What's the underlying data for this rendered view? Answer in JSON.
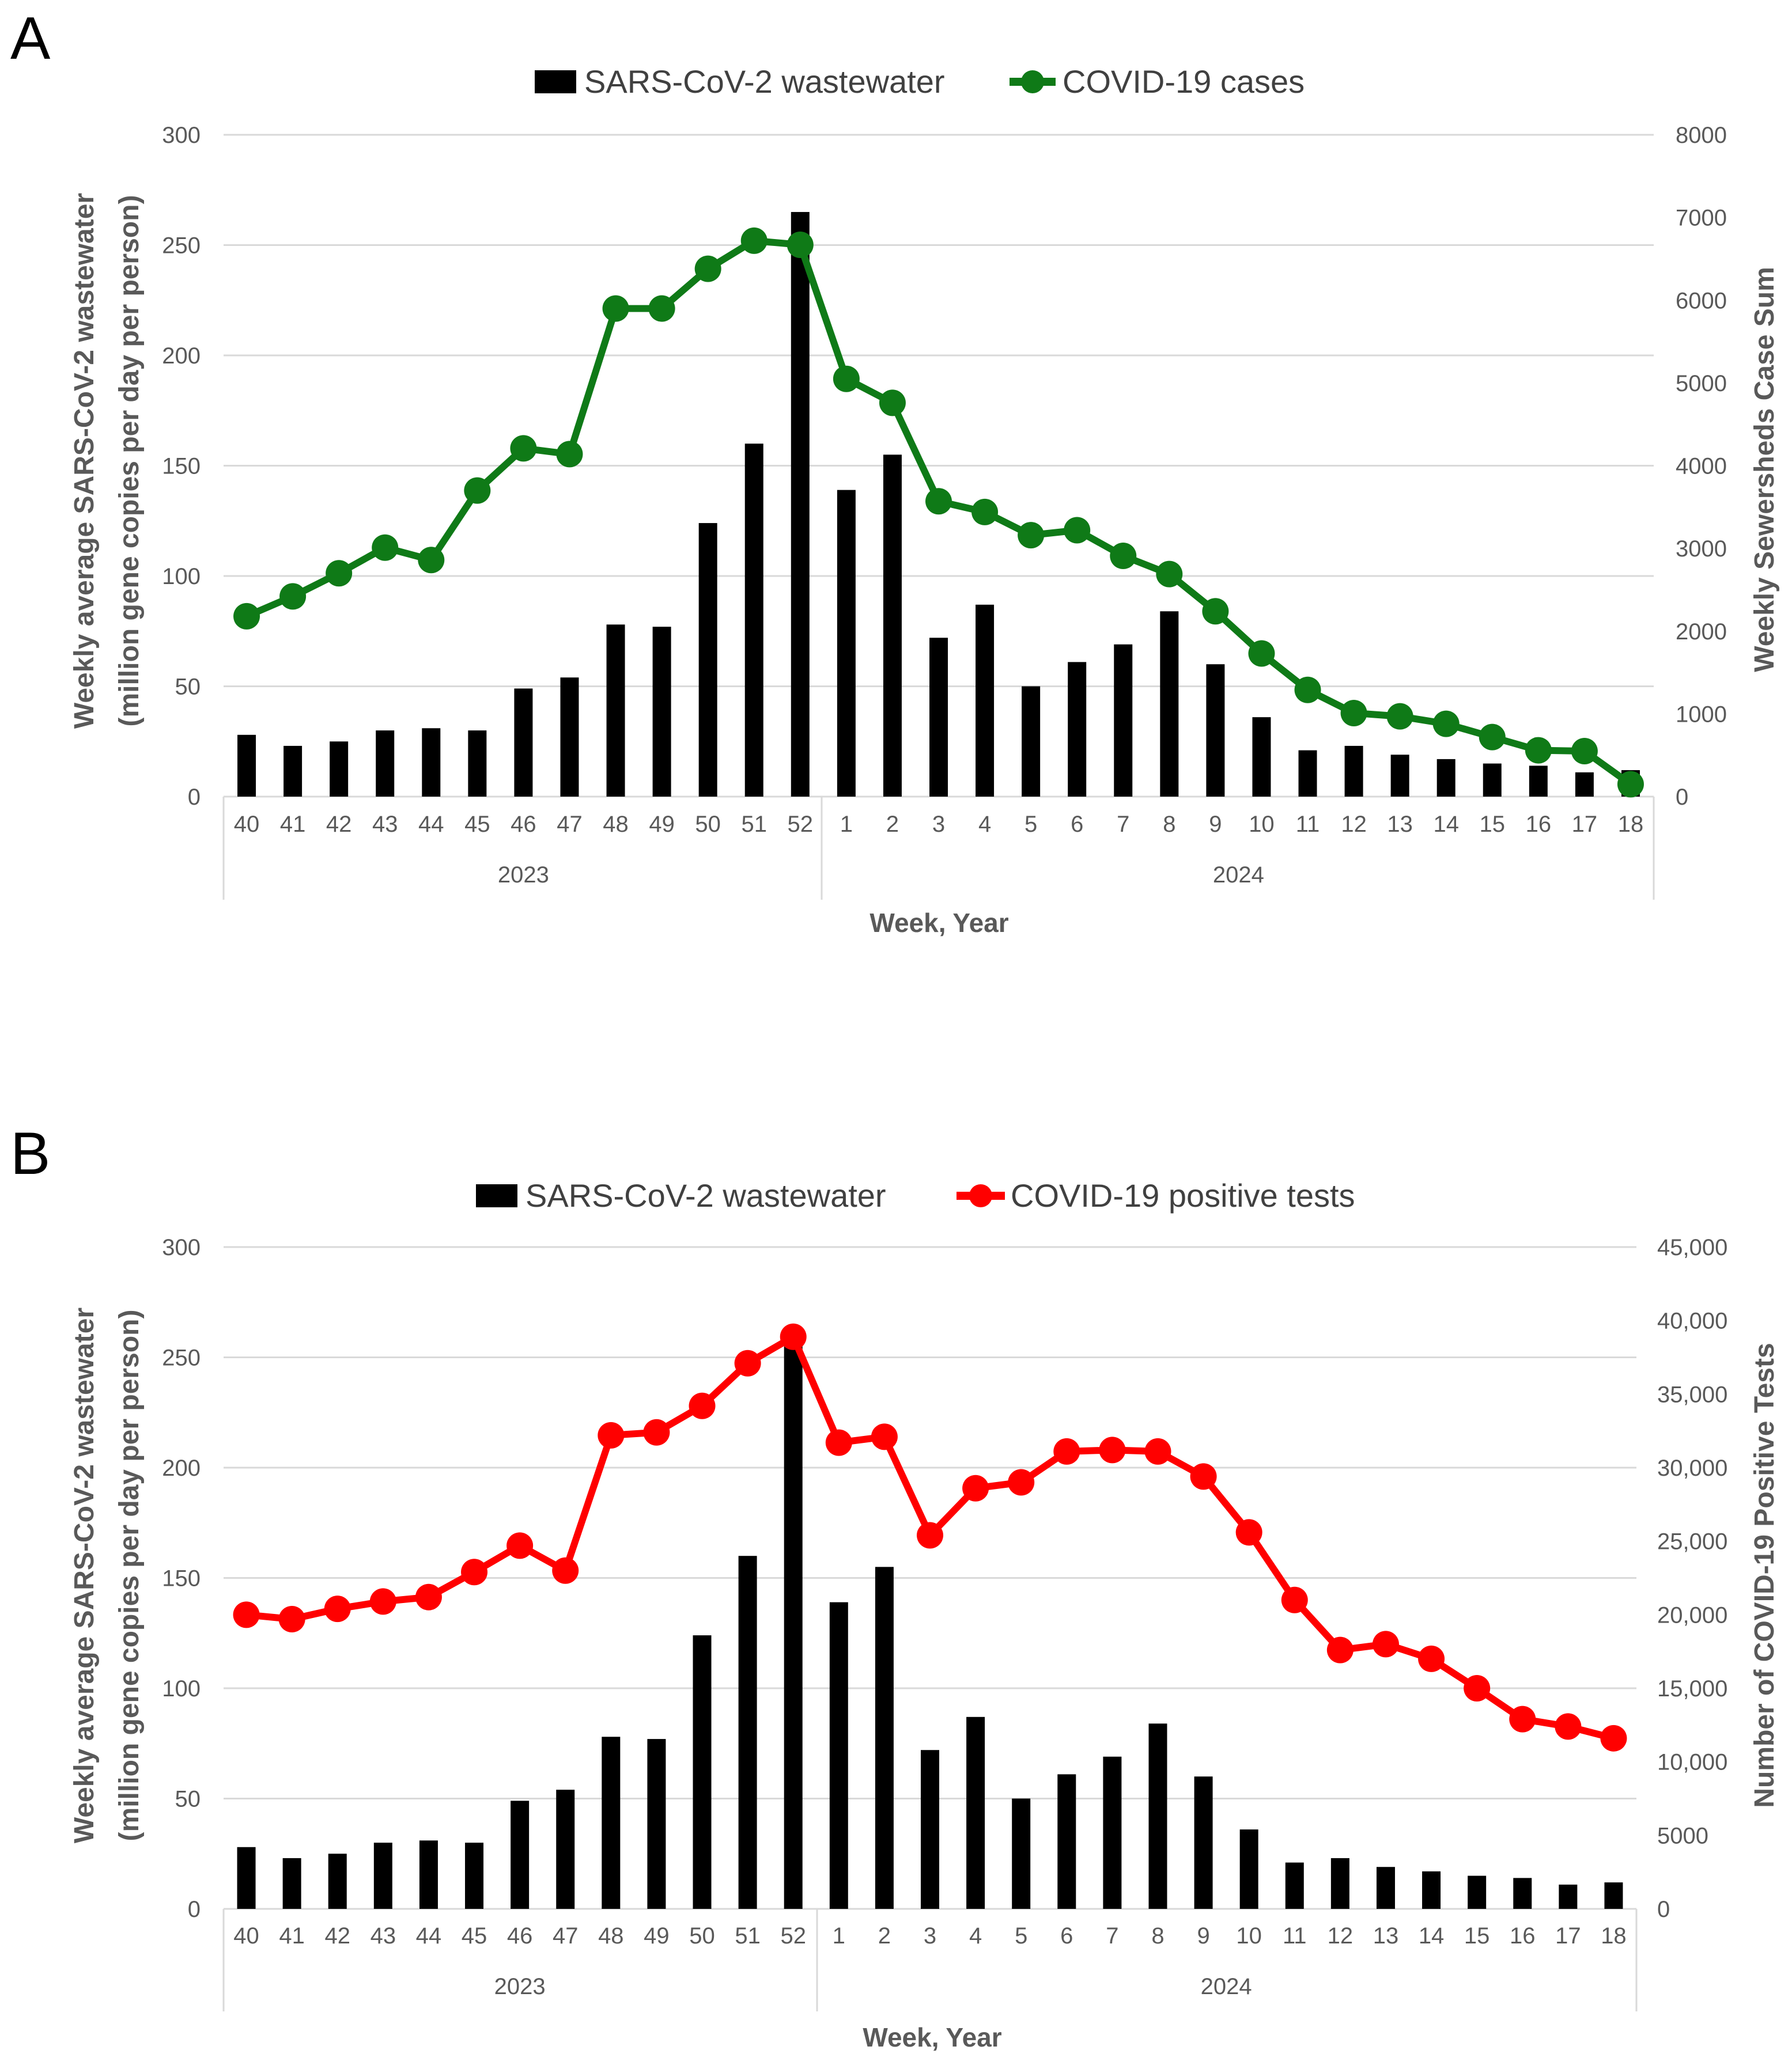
{
  "chart_data": [
    {
      "panel": "A",
      "type": "bar+line",
      "legend": {
        "position": "top",
        "items": [
          "SARS-CoV-2 wastewater",
          "COVID-19 cases"
        ]
      },
      "x": [
        "40",
        "41",
        "42",
        "43",
        "44",
        "45",
        "46",
        "47",
        "48",
        "49",
        "50",
        "51",
        "52",
        "1",
        "2",
        "3",
        "4",
        "5",
        "6",
        "7",
        "8",
        "9",
        "10",
        "11",
        "12",
        "13",
        "14",
        "15",
        "16",
        "17",
        "18"
      ],
      "year_groups": [
        {
          "label": "2023",
          "weeks": [
            "40",
            "41",
            "42",
            "43",
            "44",
            "45",
            "46",
            "47",
            "48",
            "49",
            "50",
            "51",
            "52"
          ]
        },
        {
          "label": "2024",
          "weeks": [
            "1",
            "2",
            "3",
            "4",
            "5",
            "6",
            "7",
            "8",
            "9",
            "10",
            "11",
            "12",
            "13",
            "14",
            "15",
            "16",
            "17",
            "18"
          ]
        }
      ],
      "xlabel": "Week, Year",
      "ylabel_left": [
        "Weekly average SARS-CoV-2 wastewater",
        "(million gene copies per day per person)"
      ],
      "ylabel_right": "Weekly Sewersheds Case Sum",
      "ylim_left": [
        0,
        300
      ],
      "yticks_left": [
        "0",
        "50",
        "100",
        "150",
        "200",
        "250",
        "300"
      ],
      "ylim_right": [
        0,
        8000
      ],
      "yticks_right": [
        "0",
        "1000",
        "2000",
        "3000",
        "4000",
        "5000",
        "6000",
        "7000",
        "8000"
      ],
      "grid": true,
      "series": [
        {
          "name": "SARS-CoV-2 wastewater",
          "type": "bar",
          "axis": "left",
          "color": "#000000",
          "values": [
            28,
            23,
            25,
            30,
            31,
            30,
            49,
            54,
            78,
            77,
            124,
            160,
            265,
            139,
            155,
            72,
            87,
            50,
            61,
            69,
            84,
            60,
            36,
            21,
            23,
            19,
            17,
            15,
            14,
            11,
            12
          ]
        },
        {
          "name": "COVID-19 cases",
          "type": "line",
          "axis": "right",
          "color": "#0f7a17",
          "values": [
            2180,
            2420,
            2700,
            3010,
            2860,
            3700,
            4210,
            4140,
            5900,
            5900,
            6380,
            6720,
            6670,
            5050,
            4760,
            3570,
            3440,
            3160,
            3220,
            2910,
            2690,
            2240,
            1730,
            1290,
            1010,
            970,
            880,
            720,
            560,
            550,
            150
          ]
        }
      ]
    },
    {
      "panel": "B",
      "type": "bar+line",
      "legend": {
        "position": "top",
        "items": [
          "SARS-CoV-2 wastewater",
          "COVID-19 positive tests"
        ]
      },
      "x": [
        "40",
        "41",
        "42",
        "43",
        "44",
        "45",
        "46",
        "47",
        "48",
        "49",
        "50",
        "51",
        "52",
        "1",
        "2",
        "3",
        "4",
        "5",
        "6",
        "7",
        "8",
        "9",
        "10",
        "11",
        "12",
        "13",
        "14",
        "15",
        "16",
        "17",
        "18"
      ],
      "year_groups": [
        {
          "label": "2023",
          "weeks": [
            "40",
            "41",
            "42",
            "43",
            "44",
            "45",
            "46",
            "47",
            "48",
            "49",
            "50",
            "51",
            "52"
          ]
        },
        {
          "label": "2024",
          "weeks": [
            "1",
            "2",
            "3",
            "4",
            "5",
            "6",
            "7",
            "8",
            "9",
            "10",
            "11",
            "12",
            "13",
            "14",
            "15",
            "16",
            "17",
            "18"
          ]
        }
      ],
      "xlabel": "Week, Year",
      "ylabel_left": [
        "Weekly average SARS-CoV-2 wastewater",
        "(million gene copies per day per person)"
      ],
      "ylabel_right": "Number of COVID-19 Positive Tests",
      "ylim_left": [
        0,
        300
      ],
      "yticks_left": [
        "0",
        "50",
        "100",
        "150",
        "200",
        "250",
        "300"
      ],
      "ylim_right": [
        0,
        45000
      ],
      "yticks_right": [
        "0",
        "5000",
        "10,000",
        "15,000",
        "20,000",
        "25,000",
        "30,000",
        "35,000",
        "40,000",
        "45,000"
      ],
      "grid": true,
      "series": [
        {
          "name": "SARS-CoV-2 wastewater",
          "type": "bar",
          "axis": "left",
          "color": "#000000",
          "values": [
            28,
            23,
            25,
            30,
            31,
            30,
            49,
            54,
            78,
            77,
            124,
            160,
            260,
            139,
            155,
            72,
            87,
            50,
            61,
            69,
            84,
            60,
            36,
            21,
            23,
            19,
            17,
            15,
            14,
            11,
            12
          ]
        },
        {
          "name": "COVID-19 positive tests",
          "type": "line",
          "axis": "right",
          "color": "#ff0000",
          "values": [
            20000,
            19700,
            20400,
            20900,
            21200,
            22900,
            24700,
            23000,
            32200,
            32400,
            34200,
            37100,
            38900,
            31700,
            32100,
            25400,
            28600,
            29000,
            31100,
            31200,
            31100,
            29400,
            25600,
            21000,
            17600,
            18000,
            17000,
            15000,
            12900,
            12400,
            11600
          ]
        }
      ]
    }
  ]
}
